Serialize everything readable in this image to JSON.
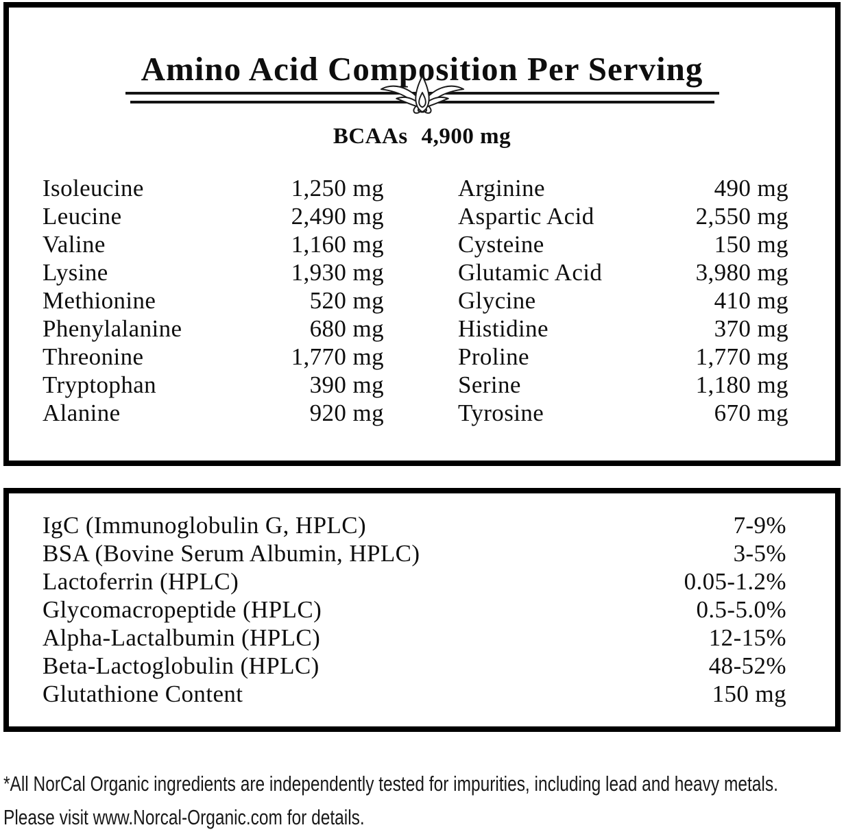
{
  "panel_amino": {
    "title": "Amino Acid Composition Per Serving",
    "bcaas": {
      "label": "BCAAs",
      "value": "4,900 mg"
    },
    "columns": {
      "left": [
        {
          "name": "Isoleucine",
          "value": "1,250 mg"
        },
        {
          "name": "Leucine",
          "value": "2,490 mg"
        },
        {
          "name": "Valine",
          "value": "1,160 mg"
        },
        {
          "name": "Lysine",
          "value": "1,930 mg"
        },
        {
          "name": "Methionine",
          "value": "520 mg"
        },
        {
          "name": "Phenylalanine",
          "value": "680 mg"
        },
        {
          "name": "Threonine",
          "value": "1,770 mg"
        },
        {
          "name": "Tryptophan",
          "value": "390 mg"
        },
        {
          "name": "Alanine",
          "value": "920 mg"
        }
      ],
      "right": [
        {
          "name": "Arginine",
          "value": "490 mg"
        },
        {
          "name": "Aspartic Acid",
          "value": "2,550 mg"
        },
        {
          "name": "Cysteine",
          "value": "150 mg"
        },
        {
          "name": "Glutamic Acid",
          "value": "3,980 mg"
        },
        {
          "name": "Glycine",
          "value": "410 mg"
        },
        {
          "name": "Histidine",
          "value": "370 mg"
        },
        {
          "name": "Proline",
          "value": "1,770 mg"
        },
        {
          "name": "Serine",
          "value": "1,180 mg"
        },
        {
          "name": "Tyrosine",
          "value": "670 mg"
        }
      ]
    }
  },
  "panel_fractions": {
    "rows": [
      {
        "name": "IgC (Immunoglobulin G, HPLC)",
        "value": "7-9%"
      },
      {
        "name": "BSA (Bovine Serum Albumin, HPLC)",
        "value": "3-5%"
      },
      {
        "name": "Lactoferrin (HPLC)",
        "value": "0.05-1.2%"
      },
      {
        "name": "Glycomacropeptide (HPLC)",
        "value": "0.5-5.0%"
      },
      {
        "name": "Alpha-Lactalbumin (HPLC)",
        "value": "12-15%"
      },
      {
        "name": "Beta-Lactoglobulin (HPLC)",
        "value": "48-52%"
      },
      {
        "name": "Glutathione Content",
        "value": "150 mg"
      }
    ]
  },
  "footnote": "*All NorCal Organic ingredients are independently tested for impurities, including lead and heavy metals. Please visit www.Norcal-Organic.com for details.",
  "icons": {
    "divider_ornament": "lotus-fleuron-icon"
  },
  "colors": {
    "text": "#111111",
    "border": "#000000",
    "background": "#ffffff"
  }
}
